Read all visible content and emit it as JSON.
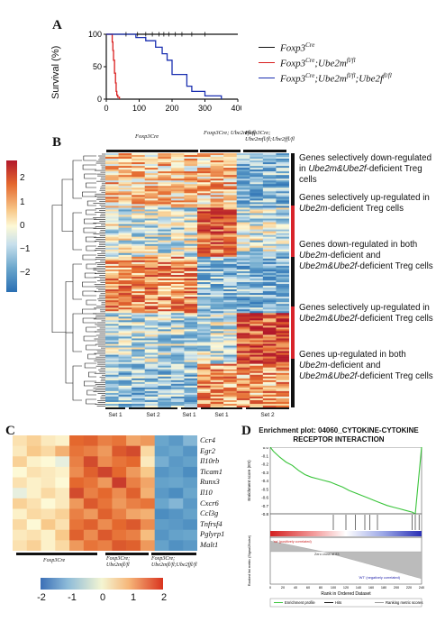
{
  "panels": {
    "a": {
      "label": "A"
    },
    "b": {
      "label": "B"
    },
    "c": {
      "label": "C"
    },
    "d": {
      "label": "D"
    }
  },
  "chart_data": [
    {
      "panel": "A",
      "type": "line",
      "ylabel": "Survival (%)",
      "xlim": [
        0,
        400
      ],
      "ylim": [
        0,
        100
      ],
      "xticks": [
        "0",
        "100",
        "200",
        "300",
        "400"
      ],
      "yticks": [
        "0",
        "50",
        "100"
      ],
      "series": [
        {
          "name": "Foxp3Cre",
          "color": "#111111",
          "x": [
            0,
            400
          ],
          "y": [
            100,
            100
          ]
        },
        {
          "name": "Foxp3Cre;Ube2mfl/fl",
          "color": "#d91e1e",
          "x": [
            0,
            15,
            18,
            20,
            22,
            25,
            28,
            30,
            32,
            35,
            40
          ],
          "y": [
            100,
            100,
            88,
            75,
            60,
            40,
            25,
            12,
            6,
            3,
            0
          ]
        },
        {
          "name": "Foxp3Cre;Ube2mfl/fl;Ube2ffl/fl",
          "color": "#1a2fb0",
          "x": [
            0,
            90,
            90,
            110,
            120,
            140,
            150,
            165,
            170,
            180,
            185,
            195,
            200,
            240,
            245,
            255,
            260,
            300,
            300,
            345,
            350
          ],
          "y": [
            100,
            100,
            95,
            95,
            90,
            90,
            80,
            80,
            70,
            70,
            60,
            60,
            38,
            38,
            20,
            20,
            12,
            12,
            5,
            5,
            0
          ]
        }
      ],
      "legend": {
        "l1": {
          "base": "Foxp3",
          "sup": "Cre"
        },
        "l2": {
          "base": "Foxp3",
          "sup": "Cre",
          "mid": ";Ube2m",
          "sup2": "fl/fl"
        },
        "l3": {
          "base": "Foxp3",
          "sup": "Cre",
          "mid": ";Ube2m",
          "sup2": "fl/fl",
          "mid2": ";Ube2f",
          "sup3": "fl/fl"
        }
      }
    },
    {
      "panel": "B",
      "type": "heatmap",
      "colorbar_ticks": [
        "2",
        "1",
        "0",
        "−1",
        "−2"
      ],
      "groups": [
        "Foxp3Cre",
        "Foxp3Cre; Ube2mfl/fl",
        "Foxp3Cre; Ube2mfl/fl;Ube2ffl/fl"
      ],
      "sets": [
        "Set 1",
        "Set 2",
        "Set 1",
        "Set 1",
        "Set 2"
      ],
      "clusters": [
        {
          "color": "#111111",
          "label_parts": [
            "Genes selectively down-regulated in ",
            "Ube2m&Ube2f",
            "-deficient Treg cells"
          ]
        },
        {
          "color": "#d8242b",
          "label_parts": [
            "Genes selectively up-regulated in ",
            "Ube2m",
            "-deficient Treg cells"
          ]
        },
        {
          "color": "#111111",
          "label_parts": [
            "Genes down-regulated in both ",
            "Ube2m",
            "-deficient and ",
            "Ube2m&Ube2f",
            "-deficient Treg cells"
          ]
        },
        {
          "color": "#d8242b",
          "label_parts": [
            "Genes selectively up-regulated in ",
            "Ube2m&Ube2f",
            "-deficient Treg cells"
          ]
        },
        {
          "color": "#111111",
          "label_parts": [
            "Genes up-regulated in both ",
            "Ube2m",
            "-deficient and ",
            "Ube2m&Ube2f",
            "-deficient Treg cells"
          ]
        }
      ]
    },
    {
      "panel": "C",
      "type": "heatmap",
      "genes": [
        "Ccr4",
        "Egr2",
        "Il10rb",
        "Ticam1",
        "Runx3",
        "Il10",
        "Cxcr6",
        "Ccl3g",
        "Tnfrsf4",
        "Pglyrp1",
        "Malt1"
      ],
      "groups": [
        "Foxp3Cre",
        "Foxp3Cre; Ube2mfl/fl",
        "Foxp3Cre; Ube2mfl/fl;Ube2ffl/fl"
      ],
      "colorbar_ticks": [
        "-2",
        "-1",
        "0",
        "1",
        "2"
      ],
      "values": [
        [
          0.3,
          0.5,
          0.2,
          0.1,
          1.4,
          1.5,
          1.2,
          1.3,
          0.9,
          1.0,
          -1.2,
          -1.5,
          -1.0
        ],
        [
          0.2,
          0.6,
          0.4,
          0.8,
          1.3,
          1.2,
          1.0,
          1.6,
          1.8,
          0.4,
          -1.4,
          -1.2,
          -1.6
        ],
        [
          0.5,
          0.1,
          0.0,
          -0.2,
          1.2,
          1.8,
          1.1,
          1.3,
          1.4,
          0.2,
          -1.1,
          -1.5,
          -1.3
        ],
        [
          0.0,
          0.3,
          0.2,
          0.1,
          1.1,
          1.5,
          1.9,
          1.4,
          1.0,
          0.6,
          -1.6,
          -1.4,
          -1.8
        ],
        [
          0.3,
          0.1,
          0.2,
          0.0,
          1.4,
          1.3,
          1.0,
          2.0,
          1.2,
          0.9,
          -1.3,
          -1.2,
          -1.4
        ],
        [
          -0.2,
          0.1,
          0.4,
          0.2,
          1.8,
          1.2,
          1.4,
          1.1,
          1.5,
          0.8,
          -1.5,
          -1.8,
          -1.2
        ],
        [
          0.5,
          0.3,
          0.0,
          0.2,
          1.0,
          1.6,
          1.3,
          1.0,
          1.2,
          1.3,
          -1.2,
          -1.0,
          -1.5
        ],
        [
          0.1,
          0.4,
          0.3,
          0.5,
          1.2,
          1.0,
          1.5,
          1.2,
          0.9,
          0.8,
          -1.8,
          -1.6,
          -1.3
        ],
        [
          0.4,
          0.0,
          0.6,
          0.3,
          1.3,
          1.5,
          1.1,
          1.4,
          1.6,
          1.1,
          -1.4,
          -1.5,
          -1.7
        ],
        [
          0.2,
          0.3,
          0.1,
          0.6,
          1.5,
          1.1,
          1.6,
          1.3,
          1.2,
          0.7,
          -1.6,
          -1.3,
          -1.2
        ],
        [
          0.3,
          0.5,
          0.1,
          0.4,
          1.0,
          1.3,
          1.2,
          1.6,
          1.5,
          1.0,
          -1.3,
          -1.7,
          -1.5
        ]
      ]
    },
    {
      "panel": "D",
      "type": "line",
      "title": "Enrichment plot: 04060_CYTOKINE-CYTOKINE RECEPTOR INTERACTION",
      "ylabel": "Enrichment score (ES)",
      "ylabel2": "Ranked list metric (Signal2Noise)",
      "xlabel": "Rank in Ordered Dataset",
      "yticks": [
        "0.0",
        "-0.1",
        "-0.2",
        "-0.3",
        "-0.4",
        "-0.5",
        "-0.6",
        "-0.7",
        "-0.8"
      ],
      "xticks": [
        "0",
        "20",
        "40",
        "60",
        "80",
        "100",
        "120",
        "140",
        "160",
        "180",
        "200",
        "220",
        "240"
      ],
      "ylim": [
        -0.8,
        0.0
      ],
      "x": [
        0,
        5,
        15,
        25,
        35,
        45,
        55,
        65,
        75,
        85,
        95,
        105,
        115,
        125,
        135,
        145,
        155,
        165,
        175,
        185,
        195,
        205,
        215,
        225,
        230,
        235,
        240
      ],
      "y": [
        0.0,
        -0.05,
        -0.12,
        -0.18,
        -0.22,
        -0.28,
        -0.33,
        -0.36,
        -0.38,
        -0.4,
        -0.42,
        -0.45,
        -0.48,
        -0.52,
        -0.55,
        -0.58,
        -0.61,
        -0.64,
        -0.67,
        -0.7,
        -0.72,
        -0.74,
        -0.76,
        -0.78,
        -0.8,
        -0.4,
        0.0
      ],
      "annotations": {
        "pos": "'na' (positively correlated)",
        "zero": "Zero cross at 83",
        "neg": "'WT' (negatively correlated)"
      },
      "legend": [
        "Enrichment profile",
        "Hits",
        "Ranking metric scores"
      ]
    }
  ]
}
